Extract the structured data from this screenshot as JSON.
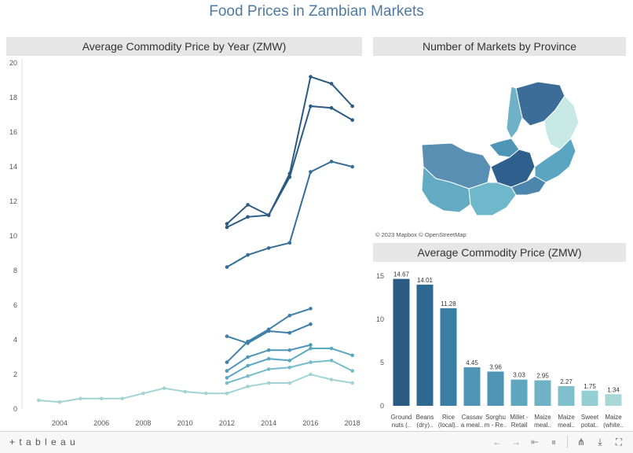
{
  "dashboard": {
    "title": "Food Prices in Zambian Markets"
  },
  "panels": {
    "left_title": "Average Commodity Price by Year (ZMW)",
    "map_title": "Number of Markets by Province",
    "bar_title": "Average Commodity Price (ZMW)"
  },
  "map": {
    "attribution": "© 2023 Mapbox  © OpenStreetMap",
    "provinces": [
      {
        "shade": "#5a8fb4"
      },
      {
        "shade": "#3b6d98"
      },
      {
        "shade": "#c8e8e6"
      },
      {
        "shade": "#6fb2c8"
      },
      {
        "shade": "#4f95b8"
      },
      {
        "shade": "#2f5f8c"
      },
      {
        "shade": "#5aa5c2"
      },
      {
        "shade": "#4d86ad"
      },
      {
        "shade": "#63aac3"
      },
      {
        "shade": "#6fb8cc"
      }
    ]
  },
  "chart_data": [
    {
      "type": "line",
      "title": "Average Commodity Price by Year (ZMW)",
      "x": [
        2003,
        2004,
        2005,
        2006,
        2007,
        2008,
        2009,
        2010,
        2011,
        2012,
        2013,
        2014,
        2015,
        2016,
        2017,
        2018
      ],
      "xticks": [
        2004,
        2006,
        2008,
        2010,
        2012,
        2014,
        2016,
        2018
      ],
      "yticks": [
        0,
        2,
        4,
        6,
        8,
        10,
        12,
        14,
        16,
        18,
        20
      ],
      "ylim": [
        0,
        20
      ],
      "xlim": [
        2002.2,
        2018.5
      ],
      "grid": false,
      "series": [
        {
          "color": "#2b5a82",
          "values": [
            null,
            null,
            null,
            null,
            null,
            null,
            null,
            null,
            null,
            10.7,
            11.8,
            11.2,
            13.6,
            19.2,
            18.8,
            17.5
          ]
        },
        {
          "color": "#2b5a82",
          "values": [
            null,
            null,
            null,
            null,
            null,
            null,
            null,
            null,
            null,
            10.5,
            11.1,
            11.2,
            13.4,
            17.5,
            17.4,
            16.7
          ]
        },
        {
          "color": "#346d97",
          "values": [
            null,
            null,
            null,
            null,
            null,
            null,
            null,
            null,
            null,
            8.2,
            8.9,
            9.3,
            9.6,
            13.7,
            14.3,
            14.0
          ]
        },
        {
          "color": "#3e7fa8",
          "values": [
            null,
            null,
            null,
            null,
            null,
            null,
            null,
            null,
            null,
            2.7,
            3.9,
            4.6,
            5.4,
            5.8,
            null,
            null
          ]
        },
        {
          "color": "#3e7fa8",
          "values": [
            null,
            null,
            null,
            null,
            null,
            null,
            null,
            null,
            null,
            4.2,
            3.8,
            4.5,
            4.4,
            4.9,
            null,
            null
          ]
        },
        {
          "color": "#4d96b8",
          "values": [
            null,
            null,
            null,
            null,
            null,
            null,
            null,
            null,
            null,
            2.2,
            3.0,
            3.4,
            3.4,
            3.7,
            null,
            null
          ]
        },
        {
          "color": "#5aa8c1",
          "values": [
            null,
            null,
            null,
            null,
            null,
            null,
            null,
            null,
            null,
            1.8,
            2.5,
            2.9,
            2.8,
            3.5,
            3.5,
            3.1
          ]
        },
        {
          "color": "#76bcca",
          "values": [
            null,
            null,
            null,
            null,
            null,
            null,
            null,
            null,
            null,
            1.5,
            1.9,
            2.3,
            2.4,
            2.7,
            2.8,
            2.2
          ]
        },
        {
          "color": "#a2d4d6",
          "values": [
            0.5,
            0.4,
            0.6,
            0.6,
            0.6,
            0.9,
            1.2,
            1.0,
            0.9,
            0.9,
            1.3,
            1.5,
            1.5,
            2.0,
            1.7,
            1.5
          ]
        }
      ]
    },
    {
      "type": "bar",
      "title": "Average Commodity Price (ZMW)",
      "categories": [
        "Ground nuts (...",
        "Beans (dry)...",
        "Rice (local)...",
        "Cassav a meal...",
        "Sorghu m - Re...",
        "Millet - Retail",
        "Maize meal...",
        "Maize meal...",
        "Sweet potat...",
        "Maize (white..."
      ],
      "category_lines": [
        [
          "Ground",
          "nuts (.."
        ],
        [
          "Beans",
          "(dry).."
        ],
        [
          "Rice",
          "(local).."
        ],
        [
          "Cassav",
          "a meal.."
        ],
        [
          "Sorghu",
          "m - Re.."
        ],
        [
          "Millet -",
          "Retail"
        ],
        [
          "Maize",
          "meal.."
        ],
        [
          "Maize",
          "meal.."
        ],
        [
          "Sweet",
          "potat.."
        ],
        [
          "Maize",
          "(white.."
        ]
      ],
      "values": [
        14.67,
        14.01,
        11.28,
        4.45,
        3.96,
        3.03,
        2.95,
        2.27,
        1.75,
        1.34
      ],
      "value_labels": [
        "14.67",
        "14.01",
        "11.28",
        "4.45",
        "3.96",
        "3.03",
        "2.95",
        "2.27",
        "1.75",
        "1.34"
      ],
      "colors": [
        "#2b5a82",
        "#30698f",
        "#3b7ea3",
        "#4f94b4",
        "#4f94b4",
        "#5fa6bf",
        "#6fb2c6",
        "#7dbfcb",
        "#96cfd3",
        "#a8d7d8"
      ],
      "yticks": [
        0,
        5,
        10,
        15
      ],
      "ylim": [
        0,
        16
      ]
    }
  ],
  "footer": {
    "logo": "+ t a b l e a u",
    "toolbar": [
      {
        "name": "undo-icon",
        "glyph": "←",
        "active": false
      },
      {
        "name": "redo-icon",
        "glyph": "→",
        "active": false
      },
      {
        "name": "revert-icon",
        "glyph": "⇤",
        "active": false
      },
      {
        "name": "pause-icon",
        "glyph": "⏸",
        "active": false
      },
      {
        "name": "share-icon",
        "glyph": "⋔",
        "active": true
      },
      {
        "name": "download-icon",
        "glyph": "⤓",
        "active": true
      },
      {
        "name": "fullscreen-icon",
        "glyph": "⛶",
        "active": true
      }
    ]
  }
}
